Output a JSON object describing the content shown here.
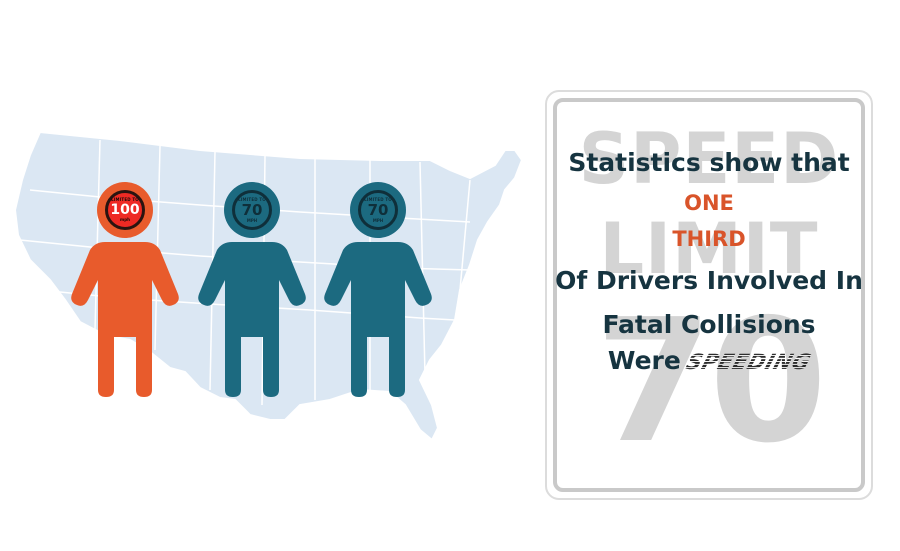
{
  "map": {
    "icon": "usa-map-icon",
    "fill": "#dbe7f3",
    "stroke": "#ffffff"
  },
  "figures": [
    {
      "color": "#e85b2c",
      "sign_top": "LIMITED TO",
      "sign_number": "100",
      "sign_unit": "mph"
    },
    {
      "color": "#1c6a80",
      "sign_top": "LIMITED TO",
      "sign_number": "70",
      "sign_unit": "MPH"
    },
    {
      "color": "#1c6a80",
      "sign_top": "LIMITED TO",
      "sign_number": "70",
      "sign_unit": "MPH"
    }
  ],
  "speed_sign": {
    "bg_line1": "SPEED",
    "bg_line2": "LIMIT",
    "bg_number": "70"
  },
  "message": {
    "line1": "Statistics show that",
    "highlight1": "ONE",
    "highlight2": "THIRD",
    "line2": "Of Drivers Involved In",
    "line3": "Fatal Collisions",
    "line4_prefix": "Were",
    "line4_emphasis": "SPEEDING"
  },
  "colors": {
    "orange": "#d9542a",
    "navy": "#163440",
    "teal": "#1c6a80",
    "sign_gray": "#d4d4d4"
  }
}
